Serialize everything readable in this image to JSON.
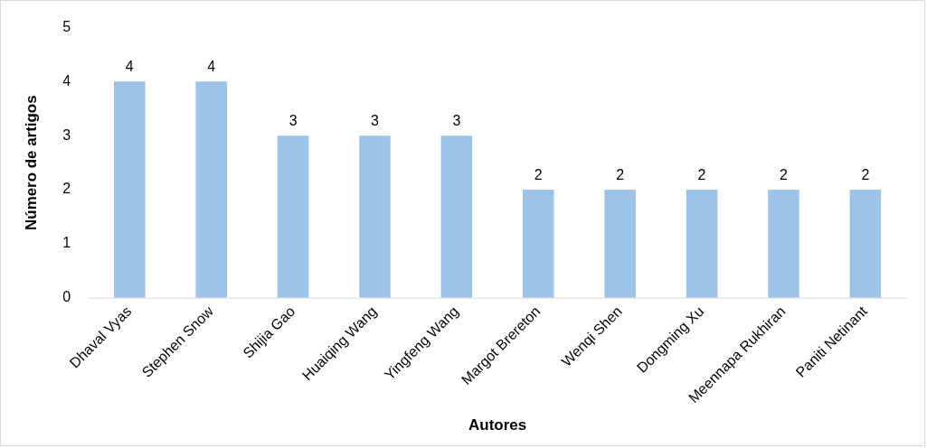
{
  "chart_data": {
    "type": "bar",
    "xlabel": "Autores",
    "ylabel": "Número de artigos",
    "categories": [
      "Dhaval Vyas",
      "Stephen Snow",
      "Shijia Gao",
      "Huaiqing Wang",
      "Yingfeng Wang",
      "Margot Brereton",
      "Wenqi Shen",
      "Dongming Xu",
      "Meennapa Rukhiran",
      "Paniti Netinant"
    ],
    "values": [
      4,
      4,
      3,
      3,
      3,
      2,
      2,
      2,
      2,
      2
    ],
    "color": "#9dc3e6",
    "ylim": [
      0,
      5
    ],
    "yticks": [
      0,
      1,
      2,
      3,
      4,
      5
    ],
    "data_labels": true
  }
}
